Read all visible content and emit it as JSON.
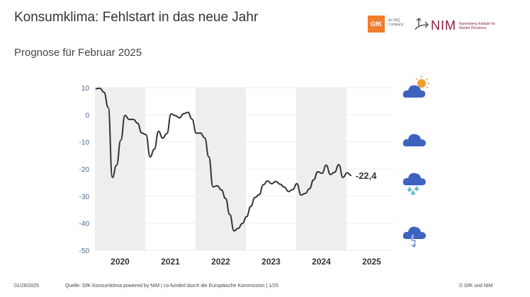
{
  "header": {
    "title": "Konsumklima: Fehlstart in das neue Jahr",
    "subtitle": "Prognose für Februar 2025",
    "logos": {
      "gfk": "GfK",
      "gfk_tagline": "An NIQ Company",
      "nim": "NIM",
      "nim_tagline": "Nuremberg Institute for Market Decisions"
    }
  },
  "chart_data": {
    "type": "line",
    "title": "",
    "xlabel": "",
    "ylabel": "",
    "ylim": [
      -50,
      10
    ],
    "yticks": [
      10,
      0,
      -10,
      -20,
      -30,
      -40,
      -50
    ],
    "year_labels": [
      "2020",
      "2021",
      "2022",
      "2023",
      "2024",
      "2025"
    ],
    "shaded_years": [
      "2020",
      "2022",
      "2024"
    ],
    "grid": true,
    "series": [
      {
        "x_start": "2020-01",
        "frequency": "monthly",
        "values": [
          9.6,
          9.8,
          8.3,
          2.7,
          -23.1,
          -18.6,
          -9.4,
          -0.2,
          -1.7,
          -1.7,
          -3.1,
          -6.7,
          -7.3,
          -15.5,
          -12.7,
          -6.1,
          -8.6,
          -6.9,
          0.3,
          -0.3,
          -1.1,
          0.4,
          0.9,
          -1.6,
          -6.8,
          -6.7,
          -8.5,
          -15.5,
          -26.6,
          -26.2,
          -27.7,
          -30.9,
          -36.8,
          -42.8,
          -41.9,
          -40.1,
          -37.6,
          -33.8,
          -30.5,
          -29.5,
          -25.8,
          -24.4,
          -25.4,
          -24.6,
          -25.6,
          -26.7,
          -28.3,
          -27.6,
          -25.4,
          -29.6,
          -29.0,
          -27.3,
          -24.0,
          -21.0,
          -21.6,
          -18.6,
          -22.0,
          -21.2,
          -18.4,
          -23.1,
          -21.4,
          -22.4
        ]
      }
    ],
    "end_label": "-22,4",
    "line_color": "#333333",
    "shade_color": "#eeeeee",
    "tick_color": "#4a6a8a"
  },
  "weather_icons": [
    "sun-cloud-icon",
    "cloud-icon",
    "rain-cloud-icon",
    "storm-cloud-icon"
  ],
  "footer": {
    "date": "01/29/2025",
    "source": "Quelle: GfK Konsumklima powered by NIM | co-funded durch die Europäische Kommission | 1/25",
    "copyright": "© GfK und NIM"
  }
}
